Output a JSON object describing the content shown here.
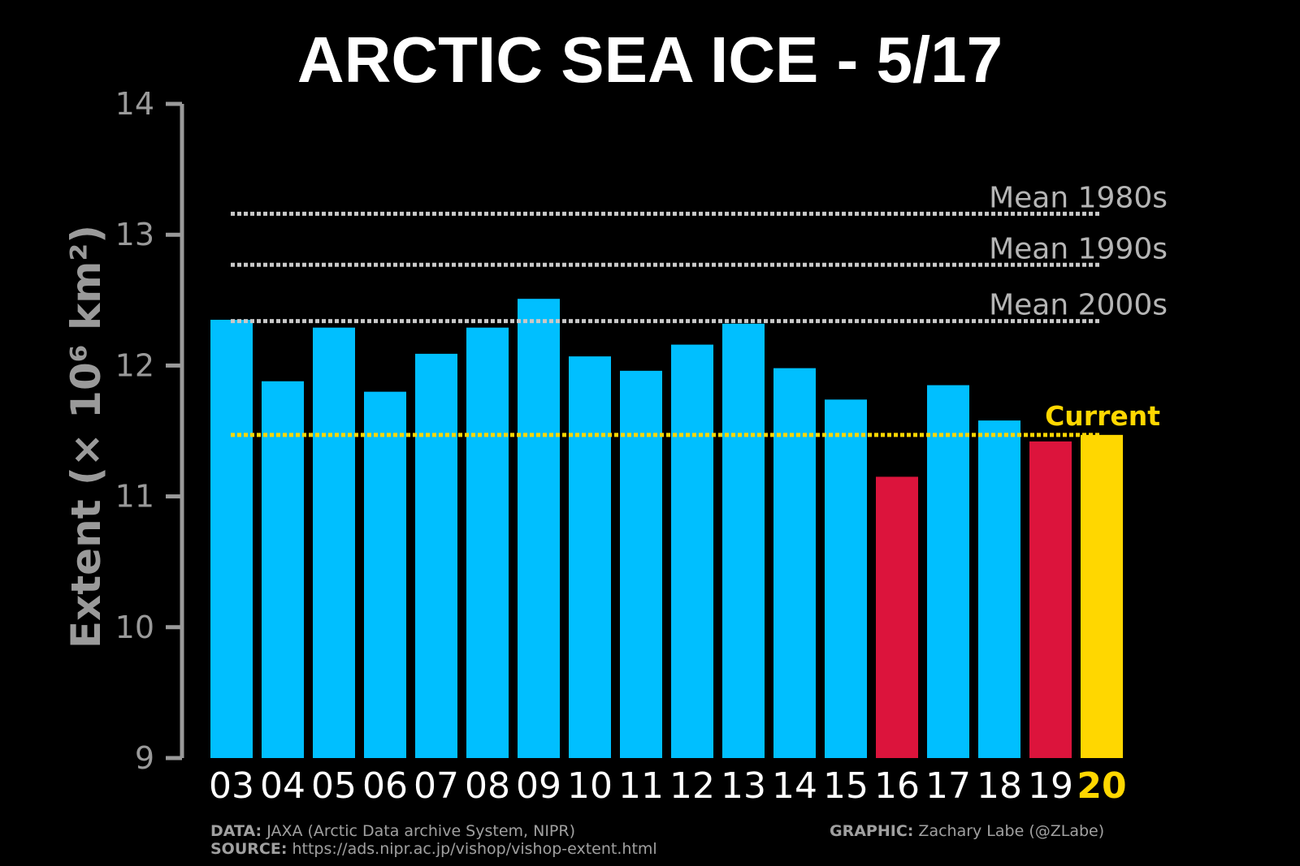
{
  "chart_data": {
    "type": "bar",
    "title": "ARCTIC SEA ICE - 5/17",
    "ylabel": "Extent (× 10⁶ km²)",
    "ylim": [
      9,
      14
    ],
    "yticks": [
      "9",
      "10",
      "11",
      "12",
      "13",
      "14"
    ],
    "categories": [
      "03",
      "04",
      "05",
      "06",
      "07",
      "08",
      "09",
      "10",
      "11",
      "12",
      "13",
      "14",
      "15",
      "16",
      "17",
      "18",
      "19",
      "20"
    ],
    "values": [
      12.35,
      11.88,
      12.29,
      11.8,
      12.09,
      12.29,
      12.51,
      12.07,
      11.96,
      12.16,
      12.32,
      11.98,
      11.74,
      11.15,
      11.85,
      11.58,
      11.42,
      11.47
    ],
    "bar_colors": [
      "#00bfff",
      "#00bfff",
      "#00bfff",
      "#00bfff",
      "#00bfff",
      "#00bfff",
      "#00bfff",
      "#00bfff",
      "#00bfff",
      "#00bfff",
      "#00bfff",
      "#00bfff",
      "#00bfff",
      "#dc143c",
      "#00bfff",
      "#00bfff",
      "#dc143c",
      "#ffd700"
    ],
    "reference_lines": [
      {
        "label": "Mean 1980s",
        "value": 13.16,
        "color": "#c8c8c8"
      },
      {
        "label": "Mean 1990s",
        "value": 12.77,
        "color": "#c8c8c8"
      },
      {
        "label": "Mean 2000s",
        "value": 12.34,
        "color": "#c8c8c8"
      }
    ],
    "current_line": {
      "label": "Current",
      "value": 11.47,
      "color": "#ffd700"
    },
    "highlight_category": "20"
  },
  "footer": {
    "data_label": "DATA:",
    "data_text": "JAXA (Arctic Data archive System, NIPR)",
    "source_label": "SOURCE:",
    "source_text": "https://ads.nipr.ac.jp/vishop/vishop-extent.html",
    "graphic_label": "GRAPHIC:",
    "graphic_text": "Zachary Labe (@ZLabe)"
  }
}
